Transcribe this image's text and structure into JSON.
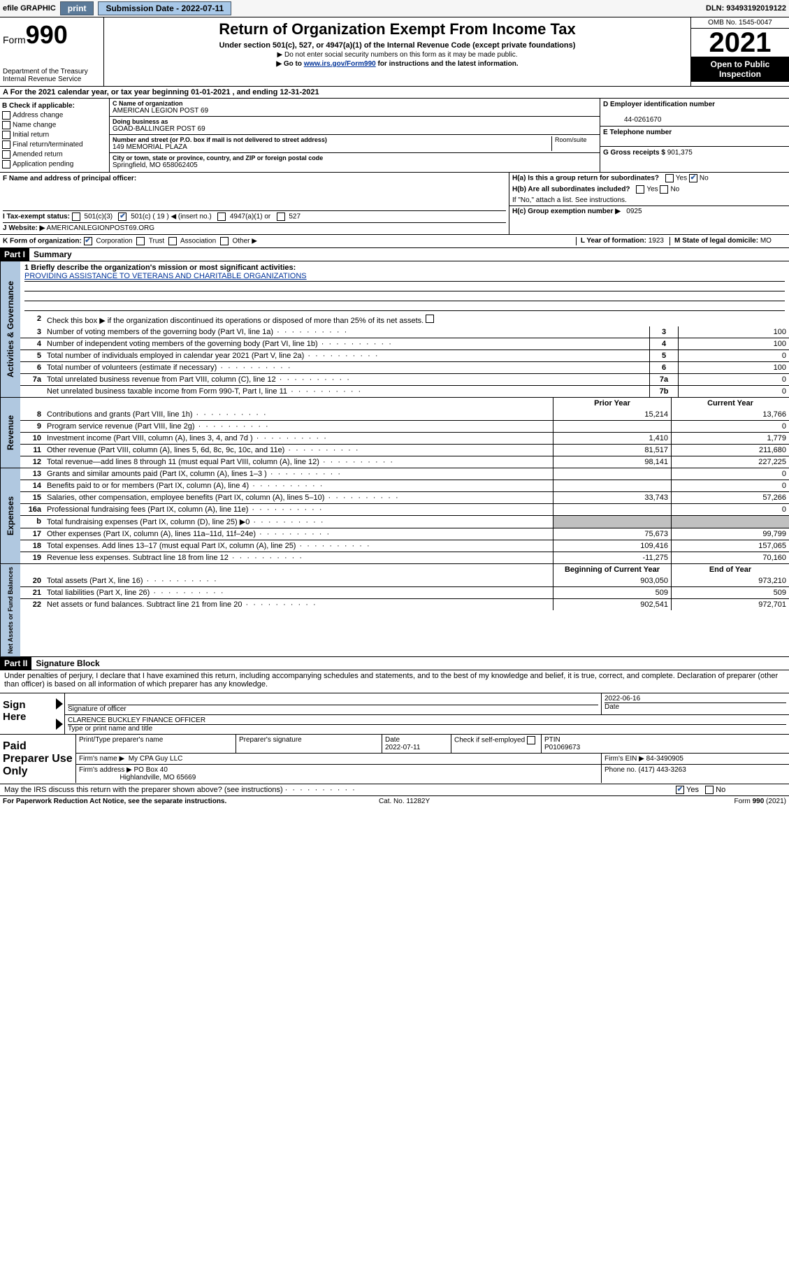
{
  "topbar": {
    "efile_label": "efile GRAPHIC",
    "print_btn": "print",
    "submission_label": "Submission Date - 2022-07-11",
    "dln": "DLN: 93493192019122"
  },
  "header": {
    "form_word": "Form",
    "form_number": "990",
    "dept": "Department of the Treasury",
    "irs": "Internal Revenue Service",
    "title": "Return of Organization Exempt From Income Tax",
    "sub1": "Under section 501(c), 527, or 4947(a)(1) of the Internal Revenue Code (except private foundations)",
    "sub2": "▶ Do not enter social security numbers on this form as it may be made public.",
    "sub3_prefix": "▶ Go to ",
    "sub3_link": "www.irs.gov/Form990",
    "sub3_suffix": " for instructions and the latest information.",
    "omb": "OMB No. 1545-0047",
    "year": "2021",
    "open_pub": "Open to Public Inspection"
  },
  "row_a": "A For the 2021 calendar year, or tax year beginning 01-01-2021    , and ending 12-31-2021",
  "col_b": {
    "title": "B Check if applicable:",
    "items": [
      "Address change",
      "Name change",
      "Initial return",
      "Final return/terminated",
      "Amended return",
      "Application pending"
    ]
  },
  "col_c": {
    "name_lbl": "C Name of organization",
    "name": "AMERICAN LEGION POST 69",
    "dba_lbl": "Doing business as",
    "dba": "GOAD-BALLINGER POST 69",
    "street_lbl": "Number and street (or P.O. box if mail is not delivered to street address)",
    "room_lbl": "Room/suite",
    "street": "149 MEMORIAL PLAZA",
    "city_lbl": "City or town, state or province, country, and ZIP or foreign postal code",
    "city": "Springfield, MO  658062405",
    "f_lbl": "F Name and address of principal officer:"
  },
  "col_d": {
    "d_lbl": "D Employer identification number",
    "d_val": "44-0261670",
    "e_lbl": "E Telephone number",
    "e_val": "",
    "g_lbl": "G Gross receipts $",
    "g_val": "901,375"
  },
  "col_h": {
    "ha_lbl": "H(a)  Is this a group return for subordinates?",
    "ha_yes": "Yes",
    "ha_no": "No",
    "hb_lbl": "H(b)  Are all subordinates included?",
    "hb_yes": "Yes",
    "hb_no": "No",
    "hb_note": "If \"No,\" attach a list. See instructions.",
    "hc_lbl": "H(c)  Group exemption number ▶",
    "hc_val": "0925"
  },
  "line_i": {
    "lbl": "I    Tax-exempt status:",
    "opt1": "501(c)(3)",
    "opt2": "501(c) ( 19 ) ◀ (insert no.)",
    "opt3": "4947(a)(1) or",
    "opt4": "527"
  },
  "line_j": {
    "lbl": "J   Website: ▶",
    "val": "AMERICANLEGIONPOST69.ORG"
  },
  "line_k": {
    "lbl": "K Form of organization:",
    "corp": "Corporation",
    "trust": "Trust",
    "assoc": "Association",
    "other": "Other ▶",
    "l_lbl": "L Year of formation:",
    "l_val": "1923",
    "m_lbl": "M State of legal domicile:",
    "m_val": "MO"
  },
  "part1": {
    "tag": "Part I",
    "title": "Summary",
    "mission_lbl": "1   Briefly describe the organization's mission or most significant activities:",
    "mission": "PROVIDING ASSISTANCE TO VETERANS AND CHARITABLE ORGANIZATIONS",
    "line2": "Check this box ▶    if the organization discontinued its operations or disposed of more than 25% of its net assets.",
    "vtab_gov": "Activities & Governance",
    "vtab_rev": "Revenue",
    "vtab_exp": "Expenses",
    "vtab_net": "Net Assets or Fund Balances",
    "gov_lines": [
      {
        "n": "3",
        "d": "Number of voting members of the governing body (Part VI, line 1a)",
        "ref": "3",
        "v": "100"
      },
      {
        "n": "4",
        "d": "Number of independent voting members of the governing body (Part VI, line 1b)",
        "ref": "4",
        "v": "100"
      },
      {
        "n": "5",
        "d": "Total number of individuals employed in calendar year 2021 (Part V, line 2a)",
        "ref": "5",
        "v": "0"
      },
      {
        "n": "6",
        "d": "Total number of volunteers (estimate if necessary)",
        "ref": "6",
        "v": "100"
      },
      {
        "n": "7a",
        "d": "Total unrelated business revenue from Part VIII, column (C), line 12",
        "ref": "7a",
        "v": "0"
      },
      {
        "n": "",
        "d": "Net unrelated business taxable income from Form 990-T, Part I, line 11",
        "ref": "7b",
        "v": "0"
      }
    ],
    "prior_hdr": "Prior Year",
    "curr_hdr": "Current Year",
    "rev_lines": [
      {
        "n": "8",
        "d": "Contributions and grants (Part VIII, line 1h)",
        "p": "15,214",
        "c": "13,766"
      },
      {
        "n": "9",
        "d": "Program service revenue (Part VIII, line 2g)",
        "p": "",
        "c": "0"
      },
      {
        "n": "10",
        "d": "Investment income (Part VIII, column (A), lines 3, 4, and 7d )",
        "p": "1,410",
        "c": "1,779"
      },
      {
        "n": "11",
        "d": "Other revenue (Part VIII, column (A), lines 5, 6d, 8c, 9c, 10c, and 11e)",
        "p": "81,517",
        "c": "211,680"
      },
      {
        "n": "12",
        "d": "Total revenue—add lines 8 through 11 (must equal Part VIII, column (A), line 12)",
        "p": "98,141",
        "c": "227,225"
      }
    ],
    "exp_lines": [
      {
        "n": "13",
        "d": "Grants and similar amounts paid (Part IX, column (A), lines 1–3 )",
        "p": "",
        "c": "0"
      },
      {
        "n": "14",
        "d": "Benefits paid to or for members (Part IX, column (A), line 4)",
        "p": "",
        "c": "0"
      },
      {
        "n": "15",
        "d": "Salaries, other compensation, employee benefits (Part IX, column (A), lines 5–10)",
        "p": "33,743",
        "c": "57,266"
      },
      {
        "n": "16a",
        "d": "Professional fundraising fees (Part IX, column (A), line 11e)",
        "p": "",
        "c": "0"
      },
      {
        "n": "b",
        "d": "Total fundraising expenses (Part IX, column (D), line 25) ▶0",
        "p": "shade",
        "c": "shade"
      },
      {
        "n": "17",
        "d": "Other expenses (Part IX, column (A), lines 11a–11d, 11f–24e)",
        "p": "75,673",
        "c": "99,799"
      },
      {
        "n": "18",
        "d": "Total expenses. Add lines 13–17 (must equal Part IX, column (A), line 25)",
        "p": "109,416",
        "c": "157,065"
      },
      {
        "n": "19",
        "d": "Revenue less expenses. Subtract line 18 from line 12",
        "p": "-11,275",
        "c": "70,160"
      }
    ],
    "net_hdr_p": "Beginning of Current Year",
    "net_hdr_c": "End of Year",
    "net_lines": [
      {
        "n": "20",
        "d": "Total assets (Part X, line 16)",
        "p": "903,050",
        "c": "973,210"
      },
      {
        "n": "21",
        "d": "Total liabilities (Part X, line 26)",
        "p": "509",
        "c": "509"
      },
      {
        "n": "22",
        "d": "Net assets or fund balances. Subtract line 21 from line 20",
        "p": "902,541",
        "c": "972,701"
      }
    ]
  },
  "part2": {
    "tag": "Part II",
    "title": "Signature Block",
    "penalty": "Under penalties of perjury, I declare that I have examined this return, including accompanying schedules and statements, and to the best of my knowledge and belief, it is true, correct, and complete. Declaration of preparer (other than officer) is based on all information of which preparer has any knowledge."
  },
  "sign": {
    "lbl": "Sign Here",
    "sig_of_officer": "Signature of officer",
    "date_lbl": "Date",
    "date_val": "2022-06-16",
    "name": "CLARENCE BUCKLEY FINANCE OFFICER",
    "name_lbl": "Type or print name and title"
  },
  "prep": {
    "lbl": "Paid Preparer Use Only",
    "h1": "Print/Type preparer's name",
    "h2": "Preparer's signature",
    "h3": "Date",
    "date": "2022-07-11",
    "h4": "Check      if self-employed",
    "h5": "PTIN",
    "ptin": "P01069673",
    "firm_name_lbl": "Firm's name    ▶",
    "firm_name": "My CPA Guy LLC",
    "firm_ein_lbl": "Firm's EIN ▶",
    "firm_ein": "84-3490905",
    "firm_addr_lbl": "Firm's address ▶",
    "firm_addr1": "PO Box 40",
    "firm_addr2": "Highlandville, MO  65669",
    "phone_lbl": "Phone no.",
    "phone": "(417) 443-3263"
  },
  "discuss": {
    "q": "May the IRS discuss this return with the preparer shown above? (see instructions)",
    "yes": "Yes",
    "no": "No"
  },
  "footer": {
    "left": "For Paperwork Reduction Act Notice, see the separate instructions.",
    "mid": "Cat. No. 11282Y",
    "right": "Form 990 (2021)"
  }
}
